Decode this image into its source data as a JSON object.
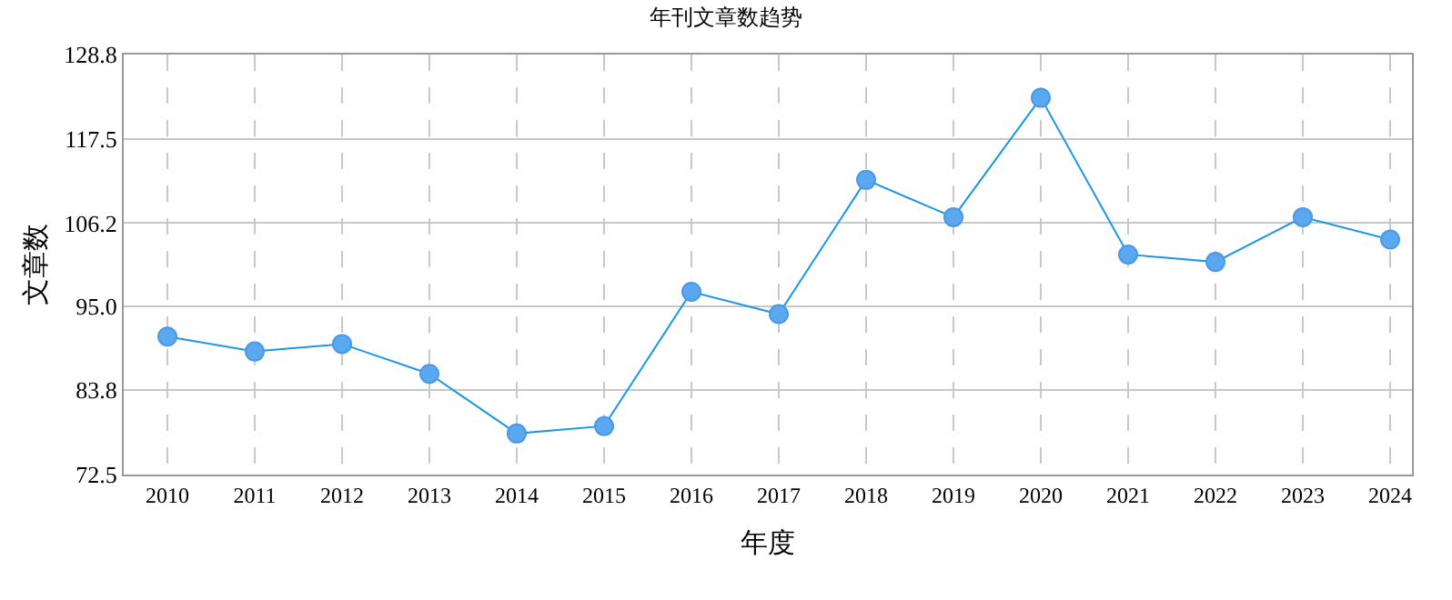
{
  "chart_data": {
    "type": "line",
    "title": "年刊文章数趋势",
    "xlabel": "年度",
    "ylabel": "文章数",
    "categories": [
      "2010",
      "2011",
      "2012",
      "2013",
      "2014",
      "2015",
      "2016",
      "2017",
      "2018",
      "2019",
      "2020",
      "2021",
      "2022",
      "2023",
      "2024"
    ],
    "series": [
      {
        "color": "#1e96e6",
        "values": [
          91,
          89,
          90,
          86,
          78,
          79,
          97,
          94,
          112,
          107,
          123,
          102,
          101,
          107,
          104
        ]
      }
    ],
    "ylim": [
      72.5,
      128.8
    ],
    "yticks": [
      72.5,
      83.8,
      {
        "value": 95,
        "label": "95.0"
      },
      106.2,
      117.5,
      128.8
    ],
    "grid": true,
    "marker": "circle",
    "line_style": "solid"
  }
}
